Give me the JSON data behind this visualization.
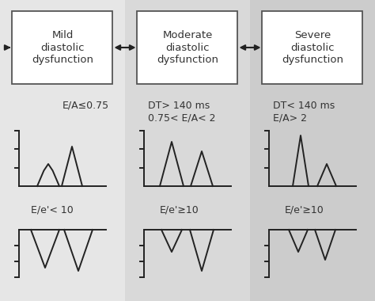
{
  "bg_col1": "#e8e8e8",
  "bg_col2": "#d8d8d8",
  "bg_col3": "#cccccc",
  "bg_overall": "#e0e0e0",
  "box_color": "#ffffff",
  "box_edge": "#444444",
  "text_color": "#333333",
  "title_mild": "Mild\ndiastolic\ndysfunction",
  "title_moderate": "Moderate\ndiastolic\ndysfunction",
  "title_severe": "Severe\ndiastolic\ndysfunction",
  "label_mild_ea": "E/A≤0.75",
  "label_moderate_ea": "DT> 140 ms\n0.75< E/A< 2",
  "label_severe_ea": "DT< 140 ms\nE/A> 2",
  "label_mild_ee": "E/e'< 10",
  "label_moderate_ee": "E/e'≥10",
  "label_severe_ee": "E/e'≥10",
  "figsize": [
    4.74,
    3.8
  ],
  "dpi": 100
}
